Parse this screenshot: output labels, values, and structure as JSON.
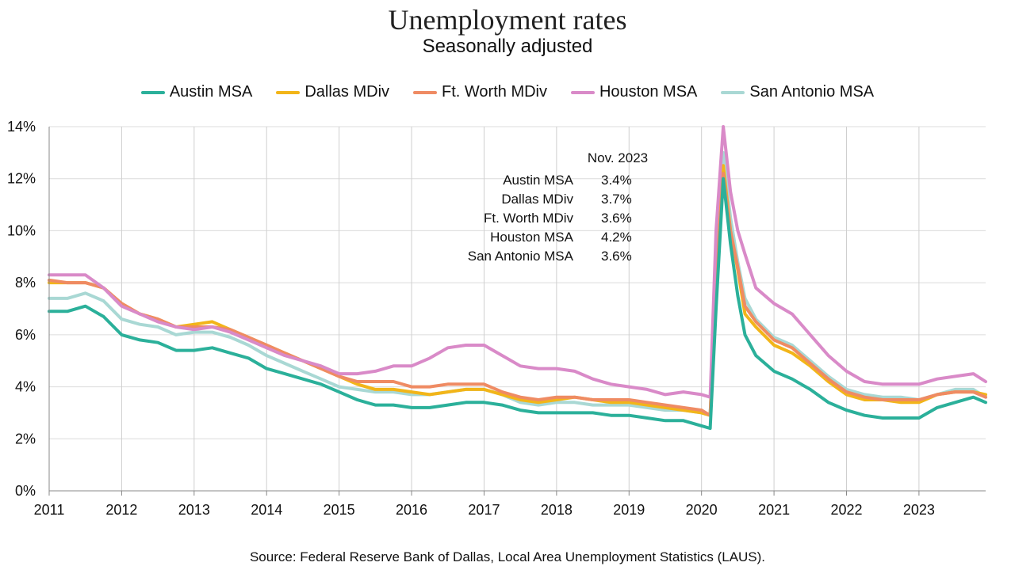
{
  "colors": {
    "austin": "#2bb09a",
    "dallas": "#f2b519",
    "ftworth": "#ef8b63",
    "houston": "#d98ac8",
    "sanantonio": "#a9d8d4"
  },
  "chart_data": {
    "type": "line",
    "title": "Unemployment rates",
    "subtitle": "Seasonally adjusted",
    "xlabel": "",
    "ylabel": "",
    "xlim": [
      2011.0,
      2023.92
    ],
    "ylim": [
      0,
      14
    ],
    "y_ticks": [
      "0%",
      "2%",
      "4%",
      "6%",
      "8%",
      "10%",
      "12%",
      "14%"
    ],
    "x_ticks": [
      "2011",
      "2012",
      "2013",
      "2014",
      "2015",
      "2016",
      "2017",
      "2018",
      "2019",
      "2020",
      "2021",
      "2022",
      "2023"
    ],
    "grid": "vertical lines at years, horizontal lines at 2% steps",
    "legend_position": "top",
    "source": "Source:  Federal Reserve Bank of Dallas,  Local Area Unemployment Statistics (LAUS).",
    "annotation": {
      "header": "Nov. 2023",
      "rows": [
        {
          "label": "Austin MSA",
          "value": "3.4%"
        },
        {
          "label": "Dallas MDiv",
          "value": "3.7%"
        },
        {
          "label": "Ft. Worth MDiv",
          "value": "3.6%"
        },
        {
          "label": "Houston MSA",
          "value": "4.2%"
        },
        {
          "label": "San Antonio MSA",
          "value": "3.6%"
        }
      ]
    },
    "series": [
      {
        "name": "Austin MSA",
        "color_key": "austin",
        "x": [
          2011.0,
          2011.25,
          2011.5,
          2011.75,
          2012.0,
          2012.25,
          2012.5,
          2012.75,
          2013.0,
          2013.25,
          2013.5,
          2013.75,
          2014.0,
          2014.25,
          2014.5,
          2014.75,
          2015.0,
          2015.25,
          2015.5,
          2015.75,
          2016.0,
          2016.25,
          2016.5,
          2016.75,
          2017.0,
          2017.25,
          2017.5,
          2017.75,
          2018.0,
          2018.25,
          2018.5,
          2018.75,
          2019.0,
          2019.25,
          2019.5,
          2019.75,
          2020.0,
          2020.12,
          2020.2,
          2020.3,
          2020.4,
          2020.5,
          2020.6,
          2020.75,
          2021.0,
          2021.25,
          2021.5,
          2021.75,
          2022.0,
          2022.25,
          2022.5,
          2022.75,
          2023.0,
          2023.25,
          2023.5,
          2023.75,
          2023.92
        ],
        "y": [
          6.9,
          6.9,
          7.1,
          6.7,
          6.0,
          5.8,
          5.7,
          5.4,
          5.4,
          5.5,
          5.3,
          5.1,
          4.7,
          4.5,
          4.3,
          4.1,
          3.8,
          3.5,
          3.3,
          3.3,
          3.2,
          3.2,
          3.3,
          3.4,
          3.4,
          3.3,
          3.1,
          3.0,
          3.0,
          3.0,
          3.0,
          2.9,
          2.9,
          2.8,
          2.7,
          2.7,
          2.5,
          2.4,
          7.0,
          12.0,
          9.5,
          7.5,
          6.0,
          5.2,
          4.6,
          4.3,
          3.9,
          3.4,
          3.1,
          2.9,
          2.8,
          2.8,
          2.8,
          3.2,
          3.4,
          3.6,
          3.4
        ]
      },
      {
        "name": "Dallas MDiv",
        "color_key": "dallas",
        "x": [
          2011.0,
          2011.25,
          2011.5,
          2011.75,
          2012.0,
          2012.25,
          2012.5,
          2012.75,
          2013.0,
          2013.25,
          2013.5,
          2013.75,
          2014.0,
          2014.25,
          2014.5,
          2014.75,
          2015.0,
          2015.25,
          2015.5,
          2015.75,
          2016.0,
          2016.25,
          2016.5,
          2016.75,
          2017.0,
          2017.25,
          2017.5,
          2017.75,
          2018.0,
          2018.25,
          2018.5,
          2018.75,
          2019.0,
          2019.25,
          2019.5,
          2019.75,
          2020.0,
          2020.12,
          2020.2,
          2020.3,
          2020.4,
          2020.5,
          2020.6,
          2020.75,
          2021.0,
          2021.25,
          2021.5,
          2021.75,
          2022.0,
          2022.25,
          2022.5,
          2022.75,
          2023.0,
          2023.25,
          2023.5,
          2023.75,
          2023.92
        ],
        "y": [
          8.0,
          8.0,
          8.0,
          7.8,
          7.2,
          6.8,
          6.6,
          6.3,
          6.4,
          6.5,
          6.2,
          5.9,
          5.6,
          5.3,
          5.0,
          4.7,
          4.4,
          4.1,
          3.9,
          3.9,
          3.8,
          3.7,
          3.8,
          3.9,
          3.9,
          3.7,
          3.5,
          3.4,
          3.5,
          3.6,
          3.5,
          3.4,
          3.4,
          3.3,
          3.2,
          3.1,
          3.0,
          2.9,
          8.0,
          12.5,
          10.0,
          8.5,
          6.8,
          6.3,
          5.6,
          5.3,
          4.8,
          4.2,
          3.7,
          3.5,
          3.5,
          3.4,
          3.4,
          3.7,
          3.8,
          3.8,
          3.7
        ]
      },
      {
        "name": "Ft. Worth MDiv",
        "color_key": "ftworth",
        "x": [
          2011.0,
          2011.25,
          2011.5,
          2011.75,
          2012.0,
          2012.25,
          2012.5,
          2012.75,
          2013.0,
          2013.25,
          2013.5,
          2013.75,
          2014.0,
          2014.25,
          2014.5,
          2014.75,
          2015.0,
          2015.25,
          2015.5,
          2015.75,
          2016.0,
          2016.25,
          2016.5,
          2016.75,
          2017.0,
          2017.25,
          2017.5,
          2017.75,
          2018.0,
          2018.25,
          2018.5,
          2018.75,
          2019.0,
          2019.25,
          2019.5,
          2019.75,
          2020.0,
          2020.12,
          2020.2,
          2020.3,
          2020.4,
          2020.5,
          2020.6,
          2020.75,
          2021.0,
          2021.25,
          2021.5,
          2021.75,
          2022.0,
          2022.25,
          2022.5,
          2022.75,
          2023.0,
          2023.25,
          2023.5,
          2023.75,
          2023.92
        ],
        "y": [
          8.1,
          8.0,
          8.0,
          7.8,
          7.2,
          6.8,
          6.6,
          6.3,
          6.3,
          6.3,
          6.2,
          5.9,
          5.6,
          5.3,
          5.0,
          4.7,
          4.4,
          4.2,
          4.2,
          4.2,
          4.0,
          4.0,
          4.1,
          4.1,
          4.1,
          3.8,
          3.6,
          3.5,
          3.6,
          3.6,
          3.5,
          3.5,
          3.5,
          3.4,
          3.3,
          3.2,
          3.1,
          2.9,
          8.0,
          12.2,
          10.0,
          8.6,
          7.1,
          6.5,
          5.8,
          5.5,
          4.9,
          4.3,
          3.8,
          3.6,
          3.5,
          3.5,
          3.5,
          3.7,
          3.8,
          3.8,
          3.6
        ]
      },
      {
        "name": "Houston MSA",
        "color_key": "houston",
        "x": [
          2011.0,
          2011.25,
          2011.5,
          2011.75,
          2012.0,
          2012.25,
          2012.5,
          2012.75,
          2013.0,
          2013.25,
          2013.5,
          2013.75,
          2014.0,
          2014.25,
          2014.5,
          2014.75,
          2015.0,
          2015.25,
          2015.5,
          2015.75,
          2016.0,
          2016.25,
          2016.5,
          2016.75,
          2017.0,
          2017.25,
          2017.5,
          2017.75,
          2018.0,
          2018.25,
          2018.5,
          2018.75,
          2019.0,
          2019.25,
          2019.5,
          2019.75,
          2020.0,
          2020.12,
          2020.2,
          2020.3,
          2020.4,
          2020.5,
          2020.6,
          2020.75,
          2021.0,
          2021.25,
          2021.5,
          2021.75,
          2022.0,
          2022.25,
          2022.5,
          2022.75,
          2023.0,
          2023.25,
          2023.5,
          2023.75,
          2023.92
        ],
        "y": [
          8.3,
          8.3,
          8.3,
          7.8,
          7.1,
          6.8,
          6.5,
          6.3,
          6.2,
          6.3,
          6.1,
          5.8,
          5.5,
          5.2,
          5.0,
          4.8,
          4.5,
          4.5,
          4.6,
          4.8,
          4.8,
          5.1,
          5.5,
          5.6,
          5.6,
          5.2,
          4.8,
          4.7,
          4.7,
          4.6,
          4.3,
          4.1,
          4.0,
          3.9,
          3.7,
          3.8,
          3.7,
          3.6,
          10.0,
          14.0,
          11.5,
          10.0,
          9.1,
          7.8,
          7.2,
          6.8,
          6.0,
          5.2,
          4.6,
          4.2,
          4.1,
          4.1,
          4.1,
          4.3,
          4.4,
          4.5,
          4.2
        ]
      },
      {
        "name": "San Antonio MSA",
        "color_key": "sanantonio",
        "x": [
          2011.0,
          2011.25,
          2011.5,
          2011.75,
          2012.0,
          2012.25,
          2012.5,
          2012.75,
          2013.0,
          2013.25,
          2013.5,
          2013.75,
          2014.0,
          2014.25,
          2014.5,
          2014.75,
          2015.0,
          2015.25,
          2015.5,
          2015.75,
          2016.0,
          2016.25,
          2016.5,
          2016.75,
          2017.0,
          2017.25,
          2017.5,
          2017.75,
          2018.0,
          2018.25,
          2018.5,
          2018.75,
          2019.0,
          2019.25,
          2019.5,
          2019.75,
          2020.0,
          2020.12,
          2020.2,
          2020.3,
          2020.4,
          2020.5,
          2020.6,
          2020.75,
          2021.0,
          2021.25,
          2021.5,
          2021.75,
          2022.0,
          2022.25,
          2022.5,
          2022.75,
          2023.0,
          2023.25,
          2023.5,
          2023.75,
          2023.92
        ],
        "y": [
          7.4,
          7.4,
          7.6,
          7.3,
          6.6,
          6.4,
          6.3,
          6.0,
          6.1,
          6.1,
          5.9,
          5.6,
          5.2,
          4.9,
          4.6,
          4.3,
          4.0,
          3.9,
          3.8,
          3.8,
          3.7,
          3.7,
          3.8,
          3.9,
          3.9,
          3.7,
          3.4,
          3.3,
          3.4,
          3.4,
          3.3,
          3.3,
          3.3,
          3.2,
          3.1,
          3.1,
          3.0,
          2.9,
          8.5,
          13.0,
          10.5,
          8.8,
          7.4,
          6.6,
          5.9,
          5.6,
          5.0,
          4.4,
          3.9,
          3.7,
          3.6,
          3.6,
          3.5,
          3.7,
          3.9,
          3.9,
          3.6
        ]
      }
    ]
  }
}
